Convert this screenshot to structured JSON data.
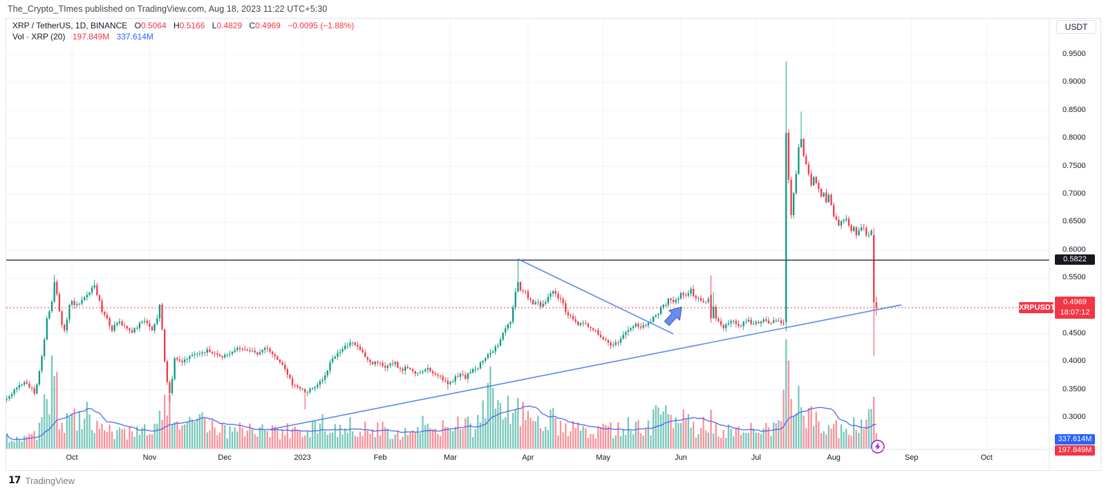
{
  "attribution": "The_Crypto_TImes published on TradingView.com, Aug 18, 2023 11:22 UTC+5:30",
  "legend": {
    "symbol": "XRP / TetherUS, 1D, BINANCE",
    "ohlc": [
      {
        "label": "O",
        "value": "0.5064"
      },
      {
        "label": "H",
        "value": "0.5166"
      },
      {
        "label": "L",
        "value": "0.4829"
      },
      {
        "label": "C",
        "value": "0.4969"
      }
    ],
    "change": "−0.0095 (−1.88%)",
    "vol_label": "Vol · XRP (20)",
    "vol_current": "197.849M",
    "vol_ma": "337.614M"
  },
  "currency_button": "USDT",
  "badges": {
    "level": "0.5822",
    "symbol_tag": "XRPUSDT",
    "last_price": "0.4969",
    "countdown": "18:07:12",
    "vol_ma": "337.614M",
    "vol_current": "197.849M"
  },
  "footer": {
    "mark": "17",
    "logo_text": "TradingView"
  },
  "colors": {
    "up": "#089981",
    "down": "#f23645",
    "vol_up": "rgba(8,153,129,0.55)",
    "vol_down": "rgba(242,54,69,0.55)",
    "ma_line": "#3d5af1",
    "trend_line": "#3874e8",
    "level_line": "#3a3e47",
    "last_price_line": "#f23645",
    "grid": "#f0f3fa",
    "axis_border": "#e0e3eb",
    "marker_purple": "#9c36cf",
    "arrow_blue": "#4f7bea"
  },
  "chart_data": {
    "type": "candlestick_with_volume",
    "title": "XRP / TetherUS, 1D, BINANCE",
    "symbol": "XRPUSDT",
    "exchange": "BINANCE",
    "interval": "1D",
    "current_bar": {
      "open": 0.5064,
      "high": 0.5166,
      "low": 0.4829,
      "close": 0.4969,
      "change": -0.0095,
      "change_pct": -1.88
    },
    "volume_current_label": "197.849M",
    "volume_ma20_label": "337.614M",
    "horizontal_level": 0.5822,
    "last_price": 0.4969,
    "num_bars": 348,
    "y_axis": {
      "ticks": [
        {
          "label": "0.9500",
          "price": 0.95
        },
        {
          "label": "0.9000",
          "price": 0.9
        },
        {
          "label": "0.8500",
          "price": 0.85
        },
        {
          "label": "0.8000",
          "price": 0.8
        },
        {
          "label": "0.7500",
          "price": 0.75
        },
        {
          "label": "0.7000",
          "price": 0.7
        },
        {
          "label": "0.6500",
          "price": 0.65
        },
        {
          "label": "0.6000",
          "price": 0.6
        },
        {
          "label": "0.5500",
          "price": 0.55
        },
        {
          "label": "0.5000",
          "price": 0.5,
          "hidden": true
        },
        {
          "label": "0.4500",
          "price": 0.45
        },
        {
          "label": "0.4000",
          "price": 0.4
        },
        {
          "label": "0.3500",
          "price": 0.35
        },
        {
          "label": "0.3000",
          "price": 0.3
        }
      ]
    },
    "x_axis": {
      "labels": [
        {
          "label": "Oct",
          "day": 26
        },
        {
          "label": "Nov",
          "day": 57
        },
        {
          "label": "Dec",
          "day": 87
        },
        {
          "label": "2023",
          "day": 118
        },
        {
          "label": "Feb",
          "day": 149
        },
        {
          "label": "Mar",
          "day": 177
        },
        {
          "label": "Apr",
          "day": 208
        },
        {
          "label": "May",
          "day": 238
        },
        {
          "label": "Jun",
          "day": 269
        },
        {
          "label": "Jul",
          "day": 299
        },
        {
          "label": "Aug",
          "day": 330
        },
        {
          "label": "Sep",
          "day": 361
        },
        {
          "label": "Oct",
          "day": 391
        }
      ]
    },
    "close_path_anchors": [
      [
        0,
        0.335
      ],
      [
        2,
        0.342
      ],
      [
        3,
        0.35
      ],
      [
        5,
        0.358
      ],
      [
        7,
        0.364
      ],
      [
        8,
        0.36
      ],
      [
        10,
        0.352
      ],
      [
        11,
        0.345
      ],
      [
        12,
        0.36
      ],
      [
        13,
        0.385
      ],
      [
        14,
        0.41
      ],
      [
        15,
        0.44
      ],
      [
        16,
        0.475
      ],
      [
        18,
        0.51
      ],
      [
        19,
        0.545
      ],
      [
        20,
        0.52
      ],
      [
        21,
        0.49
      ],
      [
        22,
        0.468
      ],
      [
        23,
        0.458
      ],
      [
        24,
        0.475
      ],
      [
        25,
        0.5
      ],
      [
        26,
        0.508
      ],
      [
        27,
        0.5
      ],
      [
        29,
        0.505
      ],
      [
        30,
        0.51
      ],
      [
        31,
        0.515
      ],
      [
        32,
        0.52
      ],
      [
        33,
        0.527
      ],
      [
        34,
        0.532
      ],
      [
        35,
        0.538
      ],
      [
        36,
        0.52
      ],
      [
        37,
        0.508
      ],
      [
        38,
        0.49
      ],
      [
        40,
        0.478
      ],
      [
        41,
        0.465
      ],
      [
        42,
        0.458
      ],
      [
        43,
        0.465
      ],
      [
        45,
        0.47
      ],
      [
        47,
        0.465
      ],
      [
        48,
        0.46
      ],
      [
        50,
        0.455
      ],
      [
        52,
        0.462
      ],
      [
        53,
        0.468
      ],
      [
        55,
        0.472
      ],
      [
        57,
        0.465
      ],
      [
        58,
        0.458
      ],
      [
        60,
        0.478
      ],
      [
        61,
        0.502
      ],
      [
        62,
        0.46
      ],
      [
        63,
        0.4
      ],
      [
        64,
        0.365
      ],
      [
        65,
        0.342
      ],
      [
        66,
        0.37
      ],
      [
        67,
        0.405
      ],
      [
        70,
        0.4
      ],
      [
        73,
        0.41
      ],
      [
        76,
        0.415
      ],
      [
        80,
        0.42
      ],
      [
        83,
        0.415
      ],
      [
        86,
        0.41
      ],
      [
        90,
        0.418
      ],
      [
        93,
        0.425
      ],
      [
        96,
        0.42
      ],
      [
        100,
        0.415
      ],
      [
        103,
        0.425
      ],
      [
        106,
        0.415
      ],
      [
        109,
        0.4
      ],
      [
        111,
        0.385
      ],
      [
        113,
        0.37
      ],
      [
        114,
        0.36
      ],
      [
        116,
        0.355
      ],
      [
        118,
        0.35
      ],
      [
        119,
        0.345
      ],
      [
        121,
        0.35
      ],
      [
        123,
        0.355
      ],
      [
        124,
        0.36
      ],
      [
        126,
        0.37
      ],
      [
        128,
        0.385
      ],
      [
        129,
        0.4
      ],
      [
        131,
        0.41
      ],
      [
        133,
        0.42
      ],
      [
        134,
        0.425
      ],
      [
        136,
        0.43
      ],
      [
        137,
        0.435
      ],
      [
        139,
        0.43
      ],
      [
        141,
        0.42
      ],
      [
        143,
        0.41
      ],
      [
        145,
        0.4
      ],
      [
        146,
        0.398
      ],
      [
        148,
        0.4
      ],
      [
        150,
        0.395
      ],
      [
        151,
        0.39
      ],
      [
        153,
        0.395
      ],
      [
        155,
        0.4
      ],
      [
        156,
        0.39
      ],
      [
        158,
        0.385
      ],
      [
        159,
        0.39
      ],
      [
        161,
        0.385
      ],
      [
        163,
        0.38
      ],
      [
        164,
        0.378
      ],
      [
        166,
        0.382
      ],
      [
        168,
        0.388
      ],
      [
        169,
        0.382
      ],
      [
        171,
        0.378
      ],
      [
        173,
        0.372
      ],
      [
        174,
        0.368
      ],
      [
        176,
        0.36
      ],
      [
        178,
        0.365
      ],
      [
        179,
        0.372
      ],
      [
        181,
        0.378
      ],
      [
        183,
        0.372
      ],
      [
        184,
        0.378
      ],
      [
        186,
        0.385
      ],
      [
        188,
        0.39
      ],
      [
        189,
        0.398
      ],
      [
        191,
        0.408
      ],
      [
        192,
        0.415
      ],
      [
        194,
        0.42
      ],
      [
        196,
        0.43
      ],
      [
        197,
        0.44
      ],
      [
        199,
        0.46
      ],
      [
        201,
        0.47
      ],
      [
        202,
        0.5
      ],
      [
        204,
        0.545
      ],
      [
        205,
        0.53
      ],
      [
        207,
        0.525
      ],
      [
        208,
        0.515
      ],
      [
        210,
        0.505
      ],
      [
        212,
        0.51
      ],
      [
        213,
        0.5
      ],
      [
        215,
        0.51
      ],
      [
        217,
        0.52
      ],
      [
        218,
        0.525
      ],
      [
        220,
        0.515
      ],
      [
        222,
        0.505
      ],
      [
        223,
        0.49
      ],
      [
        225,
        0.48
      ],
      [
        227,
        0.472
      ],
      [
        228,
        0.465
      ],
      [
        230,
        0.472
      ],
      [
        231,
        0.468
      ],
      [
        233,
        0.46
      ],
      [
        235,
        0.455
      ],
      [
        236,
        0.448
      ],
      [
        238,
        0.44
      ],
      [
        240,
        0.433
      ],
      [
        241,
        0.428
      ],
      [
        243,
        0.432
      ],
      [
        245,
        0.44
      ],
      [
        246,
        0.448
      ],
      [
        248,
        0.455
      ],
      [
        250,
        0.462
      ],
      [
        251,
        0.468
      ],
      [
        253,
        0.46
      ],
      [
        255,
        0.466
      ],
      [
        256,
        0.47
      ],
      [
        258,
        0.478
      ],
      [
        260,
        0.488
      ],
      [
        261,
        0.495
      ],
      [
        263,
        0.505
      ],
      [
        264,
        0.512
      ],
      [
        266,
        0.508
      ],
      [
        268,
        0.515
      ],
      [
        269,
        0.522
      ],
      [
        271,
        0.518
      ],
      [
        273,
        0.528
      ],
      [
        274,
        0.52
      ],
      [
        276,
        0.512
      ],
      [
        278,
        0.505
      ],
      [
        279,
        0.51
      ],
      [
        281,
        0.52
      ],
      [
        283,
        0.478
      ],
      [
        284,
        0.472
      ],
      [
        286,
        0.462
      ],
      [
        288,
        0.468
      ],
      [
        289,
        0.475
      ],
      [
        291,
        0.468
      ],
      [
        293,
        0.462
      ],
      [
        294,
        0.47
      ],
      [
        296,
        0.476
      ],
      [
        297,
        0.468
      ],
      [
        299,
        0.473
      ],
      [
        301,
        0.47
      ],
      [
        302,
        0.474
      ],
      [
        304,
        0.47
      ],
      [
        306,
        0.473
      ],
      [
        307,
        0.476
      ],
      [
        309,
        0.471
      ],
      [
        310,
        0.469
      ],
      [
        311,
        0.81
      ],
      [
        312,
        0.73
      ],
      [
        313,
        0.665
      ],
      [
        314,
        0.7
      ],
      [
        315,
        0.74
      ],
      [
        316,
        0.78
      ],
      [
        317,
        0.8
      ],
      [
        318,
        0.77
      ],
      [
        319,
        0.755
      ],
      [
        320,
        0.735
      ],
      [
        321,
        0.72
      ],
      [
        322,
        0.735
      ],
      [
        324,
        0.71
      ],
      [
        325,
        0.7
      ],
      [
        326,
        0.706
      ],
      [
        327,
        0.69
      ],
      [
        328,
        0.698
      ],
      [
        329,
        0.682
      ],
      [
        330,
        0.662
      ],
      [
        331,
        0.652
      ],
      [
        332,
        0.645
      ],
      [
        333,
        0.652
      ],
      [
        335,
        0.658
      ],
      [
        336,
        0.642
      ],
      [
        337,
        0.636
      ],
      [
        338,
        0.642
      ],
      [
        339,
        0.63
      ],
      [
        340,
        0.636
      ],
      [
        341,
        0.642
      ],
      [
        342,
        0.636
      ],
      [
        343,
        0.63
      ],
      [
        344,
        0.628
      ],
      [
        345,
        0.632
      ],
      [
        346,
        0.5064
      ],
      [
        347,
        0.4969
      ]
    ],
    "volume_profile_anchors": [
      [
        0,
        18
      ],
      [
        6,
        14
      ],
      [
        12,
        20
      ],
      [
        15,
        55
      ],
      [
        17,
        85
      ],
      [
        19,
        105
      ],
      [
        21,
        45
      ],
      [
        24,
        40
      ],
      [
        28,
        50
      ],
      [
        32,
        58
      ],
      [
        36,
        35
      ],
      [
        42,
        22
      ],
      [
        47,
        20
      ],
      [
        53,
        25
      ],
      [
        58,
        28
      ],
      [
        61,
        40
      ],
      [
        63,
        78
      ],
      [
        65,
        60
      ],
      [
        67,
        35
      ],
      [
        71,
        28
      ],
      [
        75,
        35
      ],
      [
        79,
        42
      ],
      [
        83,
        30
      ],
      [
        87,
        28
      ],
      [
        91,
        25
      ],
      [
        95,
        30
      ],
      [
        100,
        25
      ],
      [
        104,
        28
      ],
      [
        108,
        22
      ],
      [
        112,
        25
      ],
      [
        116,
        28
      ],
      [
        120,
        30
      ],
      [
        124,
        32
      ],
      [
        128,
        35
      ],
      [
        133,
        30
      ],
      [
        137,
        32
      ],
      [
        141,
        28
      ],
      [
        145,
        25
      ],
      [
        149,
        30
      ],
      [
        153,
        28
      ],
      [
        157,
        25
      ],
      [
        161,
        28
      ],
      [
        166,
        32
      ],
      [
        170,
        35
      ],
      [
        174,
        30
      ],
      [
        178,
        35
      ],
      [
        182,
        30
      ],
      [
        186,
        32
      ],
      [
        189,
        40
      ],
      [
        191,
        60
      ],
      [
        192,
        95
      ],
      [
        194,
        70
      ],
      [
        196,
        55
      ],
      [
        199,
        45
      ],
      [
        201,
        65
      ],
      [
        203,
        55
      ],
      [
        205,
        45
      ],
      [
        207,
        50
      ],
      [
        210,
        40
      ],
      [
        212,
        35
      ],
      [
        215,
        38
      ],
      [
        218,
        42
      ],
      [
        221,
        35
      ],
      [
        223,
        30
      ],
      [
        226,
        28
      ],
      [
        229,
        30
      ],
      [
        232,
        28
      ],
      [
        234,
        25
      ],
      [
        237,
        28
      ],
      [
        240,
        32
      ],
      [
        243,
        28
      ],
      [
        245,
        30
      ],
      [
        248,
        35
      ],
      [
        251,
        30
      ],
      [
        254,
        28
      ],
      [
        256,
        32
      ],
      [
        259,
        45
      ],
      [
        261,
        52
      ],
      [
        263,
        48
      ],
      [
        266,
        40
      ],
      [
        268,
        45
      ],
      [
        270,
        38
      ],
      [
        273,
        35
      ],
      [
        276,
        30
      ],
      [
        278,
        32
      ],
      [
        281,
        42
      ],
      [
        284,
        30
      ],
      [
        287,
        28
      ],
      [
        289,
        32
      ],
      [
        292,
        28
      ],
      [
        295,
        25
      ],
      [
        298,
        28
      ],
      [
        300,
        25
      ],
      [
        303,
        28
      ],
      [
        306,
        30
      ],
      [
        309,
        35
      ],
      [
        311,
        158
      ],
      [
        313,
        90
      ],
      [
        315,
        70
      ],
      [
        317,
        60
      ],
      [
        319,
        50
      ],
      [
        321,
        45
      ],
      [
        323,
        40
      ],
      [
        326,
        35
      ],
      [
        328,
        30
      ],
      [
        331,
        28
      ],
      [
        333,
        32
      ],
      [
        336,
        28
      ],
      [
        339,
        35
      ],
      [
        341,
        30
      ],
      [
        343,
        38
      ],
      [
        345,
        45
      ],
      [
        346,
        75
      ],
      [
        347,
        22
      ]
    ],
    "special_bars": [
      {
        "day": 19,
        "high": 0.556,
        "vol": 105
      },
      {
        "day": 35,
        "high": 0.547
      },
      {
        "day": 65,
        "low": 0.328,
        "vol": 78
      },
      {
        "day": 119,
        "low": 0.315
      },
      {
        "day": 176,
        "low": 0.35
      },
      {
        "day": 192,
        "vol": 95
      },
      {
        "day": 204,
        "high": 0.582
      },
      {
        "day": 241,
        "low": 0.423
      },
      {
        "day": 281,
        "open": 0.52,
        "high": 0.555,
        "low": 0.47,
        "close": 0.478
      },
      {
        "day": 311,
        "open": 0.471,
        "high": 0.938,
        "low": 0.455,
        "close": 0.81,
        "vol": 158
      },
      {
        "day": 317,
        "high": 0.848
      },
      {
        "day": 346,
        "open": 0.627,
        "high": 0.64,
        "low": 0.41,
        "close": 0.5064,
        "vol": 75
      },
      {
        "day": 347,
        "open": 0.5064,
        "high": 0.5166,
        "low": 0.4829,
        "close": 0.4969,
        "vol": 22
      }
    ],
    "trendlines": [
      {
        "name": "ascending-support",
        "from_day": 105,
        "from_price": 0.279,
        "to_day": 357,
        "to_price": 0.502
      },
      {
        "name": "descending-resistance",
        "from_day": 204,
        "from_price": 0.584,
        "to_day": 266,
        "to_price": 0.45
      }
    ],
    "arrow_marker": {
      "day": 267,
      "price": 0.486
    },
    "lightning_marker": {
      "day": 347
    }
  }
}
